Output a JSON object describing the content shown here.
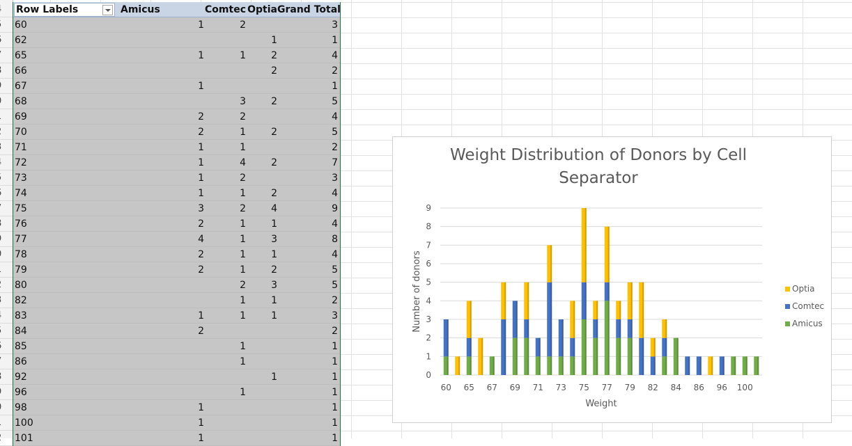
{
  "pivot": {
    "headers": {
      "row_labels": "Row Labels",
      "amicus": "Amicus",
      "comtec": "Comtec",
      "optia": "Optia",
      "grand_total": "Grand Total"
    },
    "row_numbers": [
      "4",
      "5",
      "6",
      "7",
      "8",
      "9",
      "0",
      "1",
      "2",
      "3",
      "4",
      "5",
      "6",
      "7",
      "8",
      "9",
      "0",
      "1",
      "2",
      "3",
      "4",
      "5",
      "6",
      "7",
      "8",
      "9",
      "0",
      "1",
      "2"
    ],
    "rows": [
      {
        "label": "60",
        "amicus": "1",
        "comtec": "2",
        "optia": "",
        "total": "3"
      },
      {
        "label": "62",
        "amicus": "",
        "comtec": "",
        "optia": "1",
        "total": "1"
      },
      {
        "label": "65",
        "amicus": "1",
        "comtec": "1",
        "optia": "2",
        "total": "4"
      },
      {
        "label": "66",
        "amicus": "",
        "comtec": "",
        "optia": "2",
        "total": "2"
      },
      {
        "label": "67",
        "amicus": "1",
        "comtec": "",
        "optia": "",
        "total": "1"
      },
      {
        "label": "68",
        "amicus": "",
        "comtec": "3",
        "optia": "2",
        "total": "5"
      },
      {
        "label": "69",
        "amicus": "2",
        "comtec": "2",
        "optia": "",
        "total": "4"
      },
      {
        "label": "70",
        "amicus": "2",
        "comtec": "1",
        "optia": "2",
        "total": "5"
      },
      {
        "label": "71",
        "amicus": "1",
        "comtec": "1",
        "optia": "",
        "total": "2"
      },
      {
        "label": "72",
        "amicus": "1",
        "comtec": "4",
        "optia": "2",
        "total": "7"
      },
      {
        "label": "73",
        "amicus": "1",
        "comtec": "2",
        "optia": "",
        "total": "3"
      },
      {
        "label": "74",
        "amicus": "1",
        "comtec": "1",
        "optia": "2",
        "total": "4"
      },
      {
        "label": "75",
        "amicus": "3",
        "comtec": "2",
        "optia": "4",
        "total": "9"
      },
      {
        "label": "76",
        "amicus": "2",
        "comtec": "1",
        "optia": "1",
        "total": "4"
      },
      {
        "label": "77",
        "amicus": "4",
        "comtec": "1",
        "optia": "3",
        "total": "8"
      },
      {
        "label": "78",
        "amicus": "2",
        "comtec": "1",
        "optia": "1",
        "total": "4"
      },
      {
        "label": "79",
        "amicus": "2",
        "comtec": "1",
        "optia": "2",
        "total": "5"
      },
      {
        "label": "80",
        "amicus": "",
        "comtec": "2",
        "optia": "3",
        "total": "5"
      },
      {
        "label": "82",
        "amicus": "",
        "comtec": "1",
        "optia": "1",
        "total": "2"
      },
      {
        "label": "83",
        "amicus": "1",
        "comtec": "1",
        "optia": "1",
        "total": "3"
      },
      {
        "label": "84",
        "amicus": "2",
        "comtec": "",
        "optia": "",
        "total": "2"
      },
      {
        "label": "85",
        "amicus": "",
        "comtec": "1",
        "optia": "",
        "total": "1"
      },
      {
        "label": "86",
        "amicus": "",
        "comtec": "1",
        "optia": "",
        "total": "1"
      },
      {
        "label": "92",
        "amicus": "",
        "comtec": "",
        "optia": "1",
        "total": "1"
      },
      {
        "label": "96",
        "amicus": "",
        "comtec": "1",
        "optia": "",
        "total": "1"
      },
      {
        "label": "98",
        "amicus": "1",
        "comtec": "",
        "optia": "",
        "total": "1"
      },
      {
        "label": "100",
        "amicus": "1",
        "comtec": "",
        "optia": "",
        "total": "1"
      },
      {
        "label": "101",
        "amicus": "1",
        "comtec": "",
        "optia": "",
        "total": "1"
      }
    ]
  },
  "chart_data": {
    "type": "bar",
    "stacked": true,
    "title": "Weight Distribution of Donors by Cell Separator",
    "xlabel": "Weight",
    "ylabel": "Number of donors",
    "ylim": [
      0,
      9
    ],
    "yticks": [
      0,
      1,
      2,
      3,
      4,
      5,
      6,
      7,
      8,
      9
    ],
    "grid": true,
    "legend_position": "right",
    "categories": [
      "60",
      "62",
      "65",
      "66",
      "67",
      "68",
      "69",
      "70",
      "71",
      "72",
      "73",
      "74",
      "75",
      "76",
      "77",
      "78",
      "79",
      "80",
      "82",
      "83",
      "84",
      "85",
      "86",
      "92",
      "96",
      "98",
      "100",
      "101"
    ],
    "x_tick_labels": [
      "60",
      "65",
      "67",
      "69",
      "71",
      "73",
      "75",
      "77",
      "79",
      "82",
      "84",
      "86",
      "96",
      "100"
    ],
    "series": [
      {
        "name": "Amicus",
        "color": "#70ad47",
        "values": [
          1,
          0,
          1,
          0,
          1,
          0,
          2,
          2,
          1,
          1,
          1,
          1,
          3,
          2,
          4,
          2,
          2,
          0,
          0,
          1,
          2,
          0,
          0,
          0,
          0,
          1,
          1,
          1
        ]
      },
      {
        "name": "Comtec",
        "color": "#4472c4",
        "values": [
          2,
          0,
          1,
          0,
          0,
          3,
          2,
          1,
          1,
          4,
          2,
          1,
          2,
          1,
          1,
          1,
          1,
          2,
          1,
          1,
          0,
          1,
          1,
          0,
          1,
          0,
          0,
          0
        ]
      },
      {
        "name": "Optia",
        "color": "#ffc000",
        "values": [
          0,
          1,
          2,
          2,
          0,
          2,
          0,
          2,
          0,
          2,
          0,
          2,
          4,
          1,
          3,
          1,
          2,
          3,
          1,
          1,
          0,
          0,
          0,
          1,
          0,
          0,
          0,
          0
        ]
      }
    ],
    "legend_order": [
      "Optia",
      "Comtec",
      "Amicus"
    ]
  }
}
